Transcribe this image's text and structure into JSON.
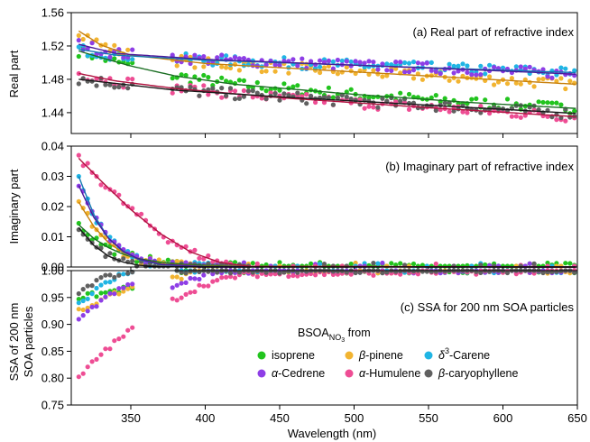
{
  "chart_data": {
    "type": "scatter",
    "xlabel": "Wavelength (nm)",
    "x_ticks": [
      "350",
      "400",
      "450",
      "500",
      "550",
      "600",
      "650"
    ],
    "xlim": [
      310,
      650
    ],
    "legend": {
      "title_main": "BSOA",
      "title_sub": "NO",
      "title_sub2": "3",
      "title_tail": " from",
      "placement": "lower-right of panel (c)"
    },
    "series": [
      {
        "key": "isoprene",
        "color": "#22c41e",
        "fit_color": "#1a6e22",
        "label_parts": [
          {
            "text": "isoprene",
            "italic": false
          }
        ]
      },
      {
        "key": "bpinene",
        "color": "#f2b431",
        "fit_color": "#c77f0b",
        "label_parts": [
          {
            "text": "β",
            "italic": true
          },
          {
            "text": "-pinene",
            "italic": false
          }
        ]
      },
      {
        "key": "d3carene",
        "color": "#20b5e4",
        "fit_color": "#1277b2",
        "label_parts": [
          {
            "text": "δ",
            "italic": true
          },
          {
            "text": "3",
            "italic": false,
            "sup": true
          },
          {
            "text": "-Carene",
            "italic": false
          }
        ]
      },
      {
        "key": "acedrene",
        "color": "#8e3ee6",
        "fit_color": "#4a1a9a",
        "label_parts": [
          {
            "text": "α",
            "italic": true
          },
          {
            "text": "-Cedrene",
            "italic": false
          }
        ]
      },
      {
        "key": "ahumulene",
        "color": "#ee4d94",
        "fit_color": "#b0123f",
        "label_parts": [
          {
            "text": "α",
            "italic": true
          },
          {
            "text": "-Humulene",
            "italic": false
          }
        ]
      },
      {
        "key": "bcaryophyllene",
        "color": "#606060",
        "fit_color": "#181818",
        "label_parts": [
          {
            "text": "β",
            "italic": true
          },
          {
            "text": "-caryophyllene",
            "italic": false
          }
        ]
      }
    ],
    "panels": [
      {
        "id": "a",
        "title": "(a) Real part of refractive index",
        "ylabel": "Real part",
        "ylabel_lines": [
          "Real part"
        ],
        "ylim": [
          1.415,
          1.56
        ],
        "y_ticks": [
          "1.44",
          "1.48",
          "1.52",
          "1.56"
        ],
        "points_step_nm": 3,
        "gaps": [
          [
            352,
            378
          ]
        ],
        "fits": {
          "isoprene": {
            "x": [
              315,
              330,
              350,
              380,
              420,
              500,
              580,
              650
            ],
            "y": [
              1.514,
              1.506,
              1.496,
              1.484,
              1.474,
              1.462,
              1.452,
              1.445
            ]
          },
          "bpinene": {
            "x": [
              315,
              330,
              350,
              400,
              500,
              600,
              650
            ],
            "y": [
              1.538,
              1.521,
              1.509,
              1.499,
              1.489,
              1.479,
              1.474
            ]
          },
          "d3carene": {
            "x": [
              315,
              340,
              400,
              500,
              600,
              650
            ],
            "y": [
              1.516,
              1.509,
              1.503,
              1.497,
              1.491,
              1.488
            ]
          },
          "acedrene": {
            "x": [
              315,
              340,
              400,
              500,
              600,
              650
            ],
            "y": [
              1.522,
              1.511,
              1.504,
              1.497,
              1.49,
              1.486
            ]
          },
          "ahumulene": {
            "x": [
              315,
              340,
              380,
              450,
              550,
              650
            ],
            "y": [
              1.487,
              1.478,
              1.469,
              1.458,
              1.446,
              1.435
            ]
          },
          "bcaryophyllene": {
            "x": [
              315,
              340,
              380,
              450,
              550,
              650
            ],
            "y": [
              1.48,
              1.475,
              1.467,
              1.459,
              1.449,
              1.439
            ]
          }
        }
      },
      {
        "id": "b",
        "title": "(b) Imaginary part of refractive index",
        "ylabel": "Imaginary part",
        "ylabel_lines": [
          "Imaginary part"
        ],
        "ylim": [
          0,
          0.04
        ],
        "y_ticks": [
          "0.00",
          "0.01",
          "0.02",
          "0.03",
          "0.04"
        ],
        "points_step_nm": 3,
        "gaps": [],
        "fits": {
          "isoprene": {
            "x": [
              315,
              325,
              335,
              345,
              355,
              370,
              390,
              420,
              650
            ],
            "y": [
              0.014,
              0.0095,
              0.0064,
              0.0042,
              0.0028,
              0.0016,
              0.0007,
              0.0002,
              0
            ]
          },
          "bpinene": {
            "x": [
              315,
              325,
              335,
              345,
              355,
              370,
              400,
              650
            ],
            "y": [
              0.0215,
              0.0135,
              0.008,
              0.0047,
              0.0026,
              0.001,
              0.0002,
              0
            ]
          },
          "d3carene": {
            "x": [
              315,
              325,
              335,
              345,
              355,
              370,
              400,
              650
            ],
            "y": [
              0.03,
              0.0175,
              0.0095,
              0.005,
              0.0025,
              0.0008,
              0.0001,
              0
            ]
          },
          "acedrene": {
            "x": [
              315,
              325,
              335,
              345,
              355,
              370,
              400,
              650
            ],
            "y": [
              0.027,
              0.0165,
              0.0095,
              0.0052,
              0.0027,
              0.0009,
              0.0001,
              0
            ]
          },
          "ahumulene": {
            "x": [
              315,
              330,
              350,
              370,
              390,
              410,
              430,
              650
            ],
            "y": [
              0.036,
              0.0285,
              0.019,
              0.011,
              0.005,
              0.0015,
              0.0002,
              0
            ]
          },
          "bcaryophyllene": {
            "x": [
              315,
              325,
              335,
              345,
              355,
              370,
              400,
              650
            ],
            "y": [
              0.013,
              0.0072,
              0.0036,
              0.0016,
              0.0006,
              0.0001,
              0,
              0
            ]
          }
        }
      },
      {
        "id": "c",
        "title": "(c) SSA for 200 nm SOA particles",
        "ylabel": "SSA of 200 nm SOA particles",
        "ylabel_lines": [
          "SSA of 200 nm",
          "SOA particles"
        ],
        "ylim": [
          0.75,
          1.0
        ],
        "y_ticks": [
          "0.75",
          "0.80",
          "0.85",
          "0.90",
          "0.95",
          "1.00"
        ],
        "points_step_nm": 3,
        "gaps": [
          [
            352,
            378
          ]
        ],
        "fits": {
          "isoprene": {
            "x": [
              315,
              330,
              350,
              380,
              390,
              650
            ],
            "y": [
              0.95,
              0.957,
              0.968,
              1.0,
              1.0,
              1.0
            ]
          },
          "bpinene": {
            "x": [
              315,
              330,
              350,
              380,
              400,
              650
            ],
            "y": [
              0.925,
              0.945,
              0.972,
              0.985,
              1.0,
              1.0
            ]
          },
          "d3carene": {
            "x": [
              315,
              330,
              345,
              350,
              380,
              650
            ],
            "y": [
              0.94,
              0.97,
              0.995,
              1.0,
              1.0,
              1.0
            ]
          },
          "acedrene": {
            "x": [
              315,
              330,
              350,
              380,
              400,
              410,
              650
            ],
            "y": [
              0.905,
              0.945,
              0.975,
              0.97,
              0.993,
              1.0,
              1.0
            ]
          },
          "ahumulene": {
            "x": [
              315,
              330,
              350,
              380,
              400,
              425,
              650
            ],
            "y": [
              0.8,
              0.845,
              0.89,
              0.948,
              0.975,
              0.993,
              1.0
            ]
          },
          "bcaryophyllene": {
            "x": [
              315,
              330,
              350,
              380,
              650
            ],
            "y": [
              0.958,
              0.985,
              1.0,
              1.0,
              1.0
            ]
          }
        }
      }
    ]
  }
}
